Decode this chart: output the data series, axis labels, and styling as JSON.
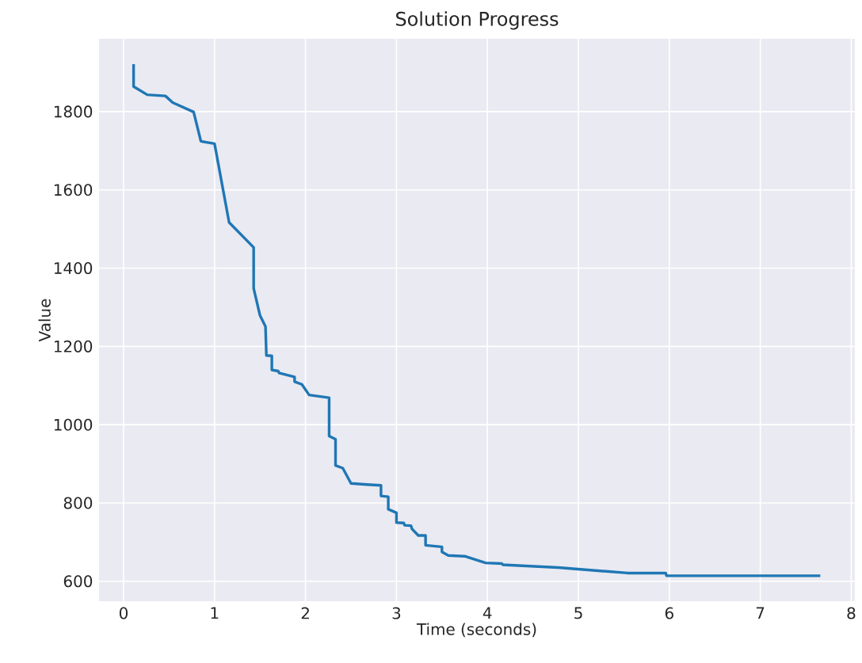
{
  "chart_data": {
    "type": "line",
    "title": "Solution Progress",
    "xlabel": "Time (seconds)",
    "ylabel": "Value",
    "x": [
      0.11,
      0.11,
      0.26,
      0.46,
      0.54,
      0.77,
      0.85,
      1.0,
      1.16,
      1.43,
      1.43,
      1.5,
      1.56,
      1.57,
      1.63,
      1.63,
      1.7,
      1.71,
      1.88,
      1.88,
      1.96,
      2.04,
      2.26,
      2.26,
      2.33,
      2.33,
      2.41,
      2.5,
      2.68,
      2.83,
      2.83,
      2.91,
      2.91,
      3.0,
      3.0,
      3.08,
      3.09,
      3.16,
      3.17,
      3.24,
      3.32,
      3.32,
      3.5,
      3.5,
      3.57,
      3.75,
      3.98,
      4.16,
      4.17,
      4.78,
      5.54,
      5.96,
      5.97,
      7.66
    ],
    "values": [
      1921,
      1864,
      1843,
      1840,
      1823,
      1799,
      1724,
      1718,
      1517,
      1453,
      1348,
      1279,
      1251,
      1177,
      1176,
      1140,
      1137,
      1132,
      1122,
      1110,
      1103,
      1076,
      1069,
      971,
      963,
      896,
      889,
      850,
      847,
      845,
      818,
      816,
      784,
      775,
      750,
      749,
      743,
      742,
      734,
      717,
      717,
      692,
      688,
      675,
      666,
      664,
      647,
      645,
      642,
      635,
      621,
      621,
      614,
      614
    ],
    "color": "#1f77b4",
    "xlim": [
      -0.27,
      8.04
    ],
    "ylim": [
      549,
      1986
    ],
    "xticks": [
      0,
      1,
      2,
      3,
      4,
      5,
      6,
      7,
      8
    ],
    "yticks": [
      600,
      800,
      1000,
      1200,
      1400,
      1600,
      1800
    ],
    "grid": true
  }
}
